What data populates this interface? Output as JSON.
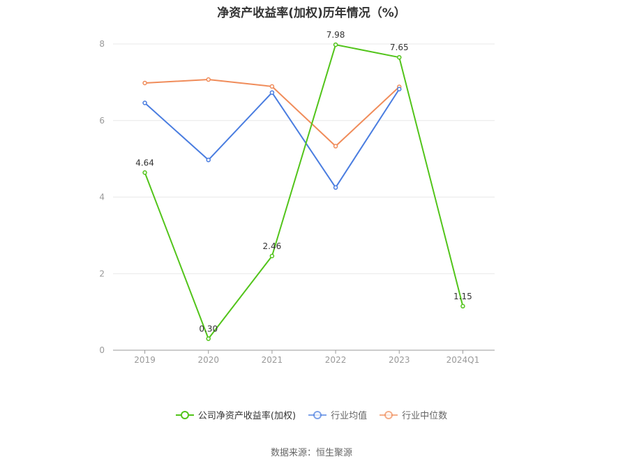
{
  "chart_data": {
    "type": "line",
    "title": "净资产收益率(加权)历年情况（%）",
    "categories": [
      "2019",
      "2020",
      "2021",
      "2022",
      "2023",
      "2024Q1"
    ],
    "ylim": [
      0,
      8
    ],
    "yticks": [
      0,
      2,
      4,
      6,
      8
    ],
    "grid": true,
    "legend_position": "bottom",
    "series": [
      {
        "name": "公司净资产收益率(加权)",
        "color": "#52c41a",
        "values": [
          4.64,
          0.3,
          2.46,
          7.98,
          7.65,
          1.15
        ],
        "labels": [
          "4.64",
          "0.30",
          "2.46",
          "7.98",
          "7.65",
          "1.15"
        ]
      },
      {
        "name": "行业均值",
        "color": "#4a7de0",
        "values": [
          6.46,
          4.97,
          6.73,
          4.25,
          6.82,
          null
        ]
      },
      {
        "name": "行业中位数",
        "color": "#f08c5a",
        "values": [
          6.98,
          7.07,
          6.89,
          5.33,
          6.88,
          null
        ]
      }
    ]
  },
  "source_text": "数据来源：恒生聚源"
}
